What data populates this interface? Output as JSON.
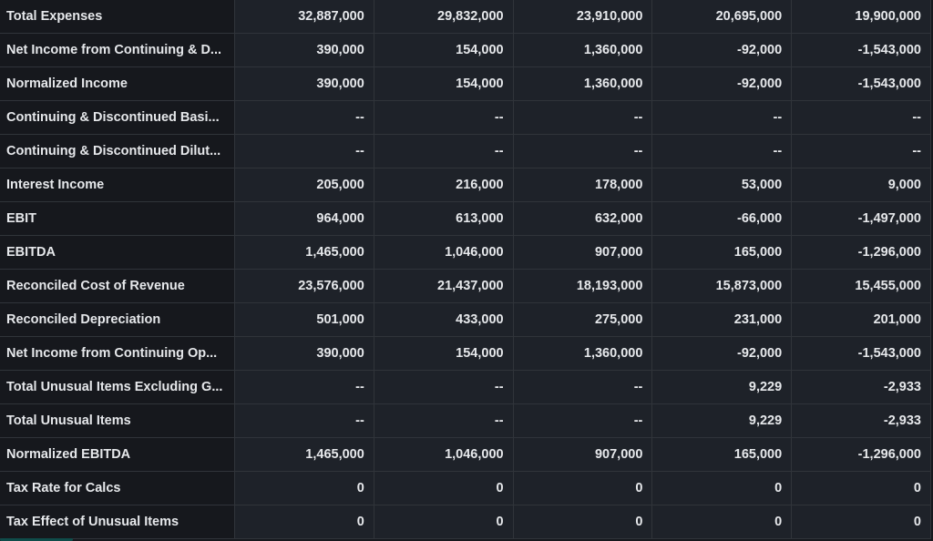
{
  "rows": [
    {
      "label": "Total Expenses",
      "values": [
        "32,887,000",
        "29,832,000",
        "23,910,000",
        "20,695,000",
        "19,900,000"
      ]
    },
    {
      "label": "Net Income from Continuing & D...",
      "values": [
        "390,000",
        "154,000",
        "1,360,000",
        "-92,000",
        "-1,543,000"
      ]
    },
    {
      "label": "Normalized Income",
      "values": [
        "390,000",
        "154,000",
        "1,360,000",
        "-92,000",
        "-1,543,000"
      ]
    },
    {
      "label": "Continuing & Discontinued Basi...",
      "values": [
        "--",
        "--",
        "--",
        "--",
        "--"
      ]
    },
    {
      "label": "Continuing & Discontinued Dilut...",
      "values": [
        "--",
        "--",
        "--",
        "--",
        "--"
      ]
    },
    {
      "label": "Interest Income",
      "values": [
        "205,000",
        "216,000",
        "178,000",
        "53,000",
        "9,000"
      ]
    },
    {
      "label": "EBIT",
      "values": [
        "964,000",
        "613,000",
        "632,000",
        "-66,000",
        "-1,497,000"
      ]
    },
    {
      "label": "EBITDA",
      "values": [
        "1,465,000",
        "1,046,000",
        "907,000",
        "165,000",
        "-1,296,000"
      ]
    },
    {
      "label": "Reconciled Cost of Revenue",
      "values": [
        "23,576,000",
        "21,437,000",
        "18,193,000",
        "15,873,000",
        "15,455,000"
      ]
    },
    {
      "label": "Reconciled Depreciation",
      "values": [
        "501,000",
        "433,000",
        "275,000",
        "231,000",
        "201,000"
      ]
    },
    {
      "label": "Net Income from Continuing Op...",
      "values": [
        "390,000",
        "154,000",
        "1,360,000",
        "-92,000",
        "-1,543,000"
      ]
    },
    {
      "label": "Total Unusual Items Excluding G...",
      "values": [
        "--",
        "--",
        "--",
        "9,229",
        "-2,933"
      ]
    },
    {
      "label": "Total Unusual Items",
      "values": [
        "--",
        "--",
        "--",
        "9,229",
        "-2,933"
      ]
    },
    {
      "label": "Normalized EBITDA",
      "values": [
        "1,465,000",
        "1,046,000",
        "907,000",
        "165,000",
        "-1,296,000"
      ]
    },
    {
      "label": "Tax Rate for Calcs",
      "values": [
        "0",
        "0",
        "0",
        "0",
        "0"
      ]
    },
    {
      "label": "Tax Effect of Unusual Items",
      "values": [
        "0",
        "0",
        "0",
        "0",
        "0"
      ]
    }
  ]
}
